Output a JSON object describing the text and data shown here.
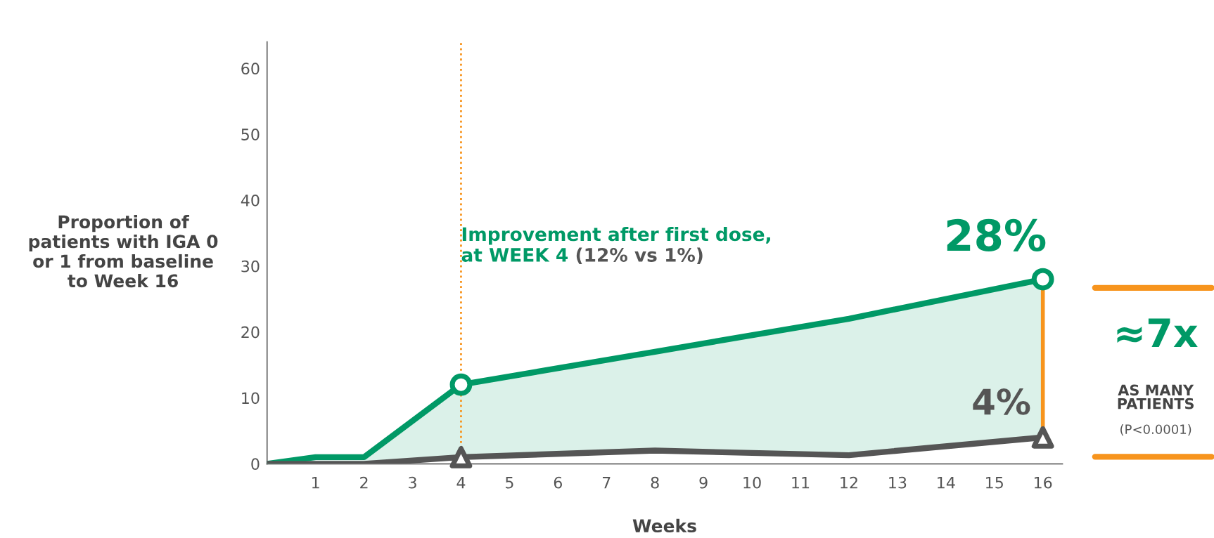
{
  "chart_data": {
    "type": "line",
    "xlabel": "Weeks",
    "ylabel": "Proportion of\npatients with IGA 0\nor 1 from baseline\nto Week 16",
    "xlim": [
      0,
      16.4
    ],
    "xticks": [
      1,
      2,
      3,
      4,
      5,
      6,
      7,
      8,
      9,
      10,
      11,
      12,
      13,
      14,
      15,
      16
    ],
    "ylim": [
      0,
      64
    ],
    "yticks": [
      0,
      10,
      20,
      30,
      40,
      50,
      60
    ],
    "grid": false,
    "legend": false,
    "series": [
      {
        "type": "area",
        "color": "#009966",
        "x": [
          0,
          1,
          2,
          4,
          8,
          12,
          16
        ],
        "values": [
          0,
          1,
          1,
          12,
          17,
          22,
          28
        ]
      },
      {
        "color": "#555555",
        "x": [
          0,
          1,
          2,
          4,
          8,
          12,
          16
        ],
        "values": [
          0,
          0,
          0,
          1,
          2,
          1.3,
          4
        ]
      },
      {
        "type": "scatter",
        "color": "#009966",
        "marker": "circle",
        "x": [
          4,
          16
        ],
        "values": [
          12,
          28
        ]
      },
      {
        "type": "scatter",
        "color": "#555555",
        "marker": "triangle",
        "x": [
          4,
          16
        ],
        "values": [
          1,
          4
        ]
      }
    ],
    "ref_lines": [
      {
        "axis": "x",
        "value": 4,
        "color": "#f7941d",
        "line_style": "dotted"
      }
    ],
    "annotations": [
      "Improvement after first dose,\nat WEEK 4",
      "(12% vs 1%)",
      {
        "text": "28%",
        "x": 16,
        "y": 28
      },
      {
        "text": "4%",
        "x": 16,
        "y": 4
      },
      "≈7x",
      "AS MANY\nPATIENTS",
      "(P<0.0001)"
    ]
  }
}
